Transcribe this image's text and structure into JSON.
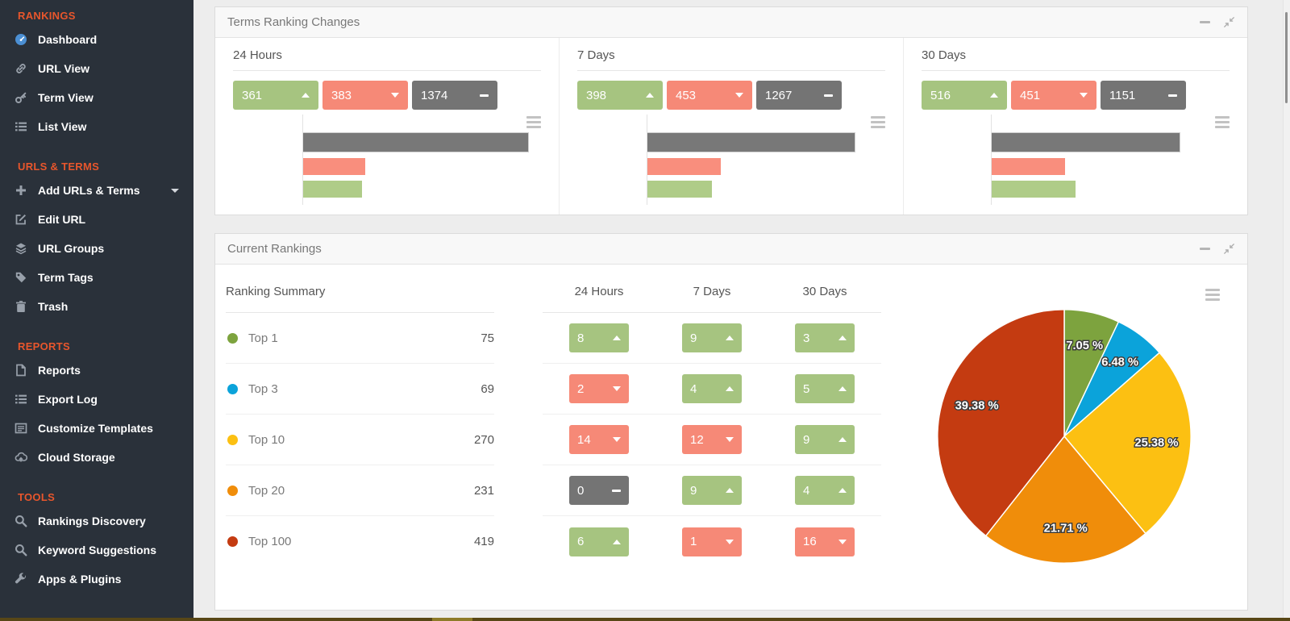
{
  "sidebar": {
    "sections": [
      {
        "title": "RANKINGS",
        "items": [
          {
            "label": "Dashboard",
            "icon": "dashboard"
          },
          {
            "label": "URL View",
            "icon": "link"
          },
          {
            "label": "Term View",
            "icon": "key"
          },
          {
            "label": "List View",
            "icon": "list"
          }
        ]
      },
      {
        "title": "URLS & TERMS",
        "items": [
          {
            "label": "Add URLs & Terms",
            "icon": "plus",
            "chevron": true
          },
          {
            "label": "Edit URL",
            "icon": "edit"
          },
          {
            "label": "URL Groups",
            "icon": "layers"
          },
          {
            "label": "Term Tags",
            "icon": "tag"
          },
          {
            "label": "Trash",
            "icon": "trash"
          }
        ]
      },
      {
        "title": "REPORTS",
        "items": [
          {
            "label": "Reports",
            "icon": "file"
          },
          {
            "label": "Export Log",
            "icon": "list"
          },
          {
            "label": "Customize Templates",
            "icon": "list-alt"
          },
          {
            "label": "Cloud Storage",
            "icon": "cloud-upload"
          }
        ]
      },
      {
        "title": "TOOLS",
        "items": [
          {
            "label": "Rankings Discovery",
            "icon": "search"
          },
          {
            "label": "Keyword Suggestions",
            "icon": "search"
          },
          {
            "label": "Apps & Plugins",
            "icon": "wrench"
          }
        ]
      }
    ]
  },
  "panels": {
    "terms_ranking_changes": {
      "title": "Terms Ranking Changes",
      "periods": [
        {
          "label": "24 Hours",
          "up": 361,
          "down": 383,
          "neutral": 1374
        },
        {
          "label": "7 Days",
          "up": 398,
          "down": 453,
          "neutral": 1267
        },
        {
          "label": "30 Days",
          "up": 516,
          "down": 451,
          "neutral": 1151
        }
      ]
    },
    "current_rankings": {
      "title": "Current Rankings",
      "table": {
        "summary_header": "Ranking Summary",
        "period_headers": [
          "24 Hours",
          "7 Days",
          "30 Days"
        ],
        "rows": [
          {
            "label": "Top 1",
            "value": 75,
            "changes": [
              {
                "value": 8,
                "dir": "up"
              },
              {
                "value": 9,
                "dir": "up"
              },
              {
                "value": 3,
                "dir": "up"
              }
            ]
          },
          {
            "label": "Top 3",
            "value": 69,
            "changes": [
              {
                "value": 2,
                "dir": "down"
              },
              {
                "value": 4,
                "dir": "up"
              },
              {
                "value": 5,
                "dir": "up"
              }
            ]
          },
          {
            "label": "Top 10",
            "value": 270,
            "changes": [
              {
                "value": 14,
                "dir": "down"
              },
              {
                "value": 12,
                "dir": "down"
              },
              {
                "value": 9,
                "dir": "up"
              }
            ]
          },
          {
            "label": "Top 20",
            "value": 231,
            "changes": [
              {
                "value": 0,
                "dir": "neutral"
              },
              {
                "value": 9,
                "dir": "up"
              },
              {
                "value": 4,
                "dir": "up"
              }
            ]
          },
          {
            "label": "Top 100",
            "value": 419,
            "changes": [
              {
                "value": 6,
                "dir": "up"
              },
              {
                "value": 1,
                "dir": "down"
              },
              {
                "value": 16,
                "dir": "down"
              }
            ]
          }
        ]
      }
    }
  },
  "chart_data": [
    {
      "type": "bar",
      "orientation": "horizontal",
      "title": "24 Hours",
      "categories": [
        "No Change",
        "Down",
        "Up"
      ],
      "values": [
        1374,
        383,
        361
      ],
      "colors": [
        "#787878",
        "#f98e7d",
        "#afcc88"
      ],
      "xlim": [
        0,
        1450
      ],
      "grid": false,
      "legend": false
    },
    {
      "type": "bar",
      "orientation": "horizontal",
      "title": "7 Days",
      "categories": [
        "No Change",
        "Down",
        "Up"
      ],
      "values": [
        1267,
        453,
        398
      ],
      "colors": [
        "#787878",
        "#f98e7d",
        "#afcc88"
      ],
      "xlim": [
        0,
        1450
      ],
      "grid": false,
      "legend": false
    },
    {
      "type": "bar",
      "orientation": "horizontal",
      "title": "30 Days",
      "categories": [
        "No Change",
        "Down",
        "Up"
      ],
      "values": [
        1151,
        451,
        516
      ],
      "colors": [
        "#787878",
        "#f98e7d",
        "#afcc88"
      ],
      "xlim": [
        0,
        1450
      ],
      "grid": false,
      "legend": false
    },
    {
      "type": "pie",
      "title": "",
      "labels": [
        "Top 1",
        "Top 3",
        "Top 10",
        "Top 20",
        "Top 100"
      ],
      "values": [
        75,
        69,
        270,
        231,
        419
      ],
      "percent_labels": [
        "7.05 %",
        "6.48 %",
        "25.38 %",
        "21.71 %",
        "39.38 %"
      ],
      "colors": [
        "#7da33e",
        "#0ba3da",
        "#fcc012",
        "#f08d0a",
        "#c43b11"
      ],
      "start_angle_deg": 0,
      "direction": "clockwise",
      "labels_inside": true,
      "legend": false
    }
  ],
  "colors": {
    "up_badge": "#a6c480",
    "down_badge": "#f68977",
    "neutral_badge": "#747474",
    "accent_orange": "#e8562c",
    "sidebar_bg": "#2a313a",
    "dashboard_icon_blue": "#4b8fd3"
  }
}
